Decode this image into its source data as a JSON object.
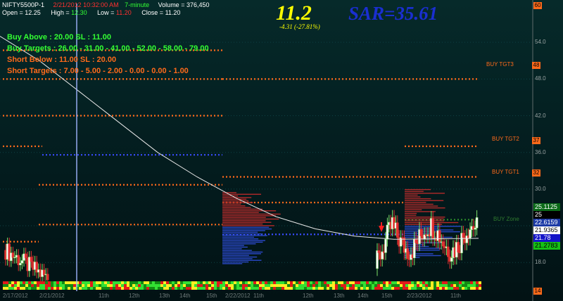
{
  "header": {
    "symbol": "NIFTY5500P-1",
    "datetime": "2/21/2012 10:32:00 AM",
    "interval": "7-minute",
    "volume": "Volume = 376,450",
    "open": "Open = 12.25",
    "high_label": "High = ",
    "high_value": "12.30",
    "low_label": "Low = ",
    "low_value": "11.20",
    "close": "Close = 11.20"
  },
  "last_price": "11.2",
  "change": "-4.31  (-27.81%)",
  "sar": "SAR=35.61",
  "annotations": {
    "buy_above": "Buy Above : 20.00 SL : 11.00",
    "buy_targets": "Buy Targets : 26.00 - 31.00 - 41.00 - 52.00 - 58.00 - 79.00",
    "short_below": "Short Below : 11.00 SL : 20.00",
    "short_targets": "Short Targets : 7.00 - 5.00 - 2.00 - 0.00 - 0.00 - 1.00"
  },
  "level_labels": {
    "buy_tgt3": "BUY TGT3",
    "buy_tgt2": "BUY TGT2",
    "buy_tgt1": "BUY TGT1",
    "buy_zone": "BUY Zone"
  },
  "level_boxes": {
    "tgt3": "48",
    "tgt2": "37",
    "tgt1": "32"
  },
  "y_axis_ticks": [
    "54.0",
    "48.0",
    "42.0",
    "36.0",
    "30.0",
    "24.0",
    "18.0"
  ],
  "axis_end_top": "60",
  "axis_end_bottom": "14",
  "value_boxes": [
    {
      "value": "25.1125",
      "bg": "#0b6b18",
      "fg": "#ffffff"
    },
    {
      "value": "25",
      "bg": "#000000",
      "fg": "#ffffff"
    },
    {
      "value": "22.6159",
      "bg": "#1c3aa6",
      "fg": "#ffffff"
    },
    {
      "value": "21.9365",
      "bg": "#ffffff",
      "fg": "#000000"
    },
    {
      "value": "21.78",
      "bg": "#1414c8",
      "fg": "#ffffff"
    },
    {
      "value": "21.2783",
      "bg": "#16c016",
      "fg": "#000000"
    }
  ],
  "x_axis_labels": [
    "2/17/2012",
    "2/21/2012",
    "11th",
    "12th",
    "13th",
    "14th",
    "15th",
    "2/22/2012",
    "11th",
    "12th",
    "13th",
    "14th",
    "15th",
    "2/23/2012",
    "11th"
  ],
  "colors": {
    "background": "#062a2a",
    "target_line": "#ff6a1a",
    "cursor_line": "#a0b4ff",
    "sar_text": "#1a2fd0",
    "price_text": "#ffff00",
    "buy_text": "#33ff33",
    "short_text": "#ff6a1a"
  },
  "chart_data": {
    "type": "line",
    "ylim": [
      14,
      60
    ],
    "levels": [
      {
        "value": 48,
        "label": "BUY TGT3"
      },
      {
        "value": 37,
        "label": "BUY TGT2"
      },
      {
        "value": 32,
        "label": "BUY TGT1"
      },
      {
        "value": 25.1125
      },
      {
        "value": 22.6159
      },
      {
        "value": 21.9365
      },
      {
        "value": 21.78
      },
      {
        "value": 21.2783
      }
    ],
    "series": [
      {
        "values": [
          55,
          51,
          46,
          41,
          36,
          32,
          28.5,
          25.5,
          23.5,
          22.3,
          21.8
        ]
      }
    ]
  }
}
